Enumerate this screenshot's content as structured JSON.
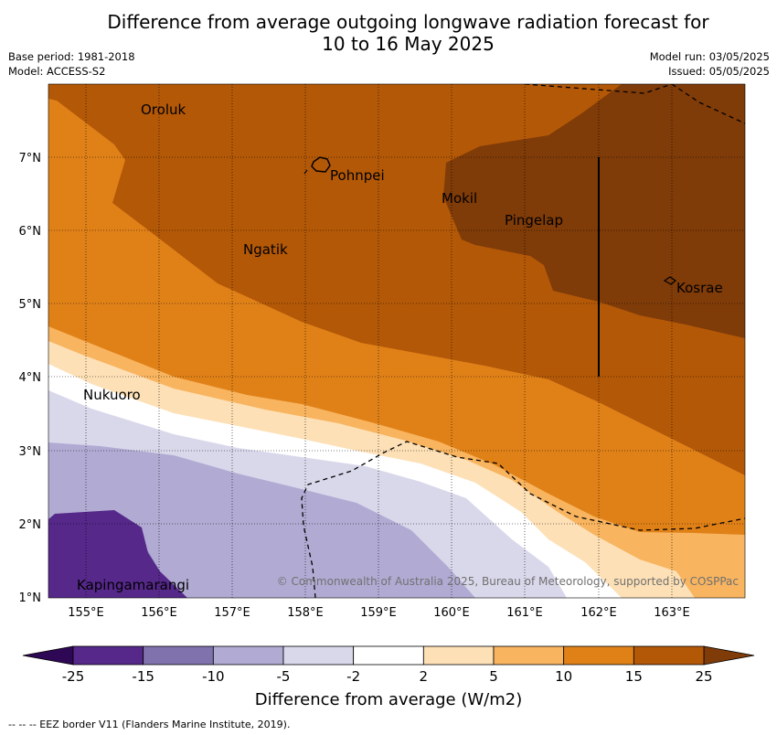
{
  "title_line1": "Difference from average outgoing longwave radiation forecast for",
  "title_line2": "10 to 16 May 2025",
  "base_period": "Base period: 1981-2018",
  "model": "Model: ACCESS-S2",
  "model_run": "Model run: 03/05/2025",
  "issued": "Issued: 05/05/2025",
  "lat_labels": [
    "7°N",
    "6°N",
    "5°N",
    "4°N",
    "3°N",
    "2°N",
    "1°N"
  ],
  "lon_labels": [
    "155°E",
    "156°E",
    "157°E",
    "158°E",
    "159°E",
    "160°E",
    "161°E",
    "162°E",
    "163°E"
  ],
  "places": {
    "oroluk": "Oroluk",
    "pohnpei": "Pohnpei",
    "mokil": "Mokil",
    "pingelap": "Pingelap",
    "ngatik": "Ngatik",
    "kosrae": "Kosrae",
    "nukuoro": "Nukuoro",
    "kapingamarangi": "Kapingamarangi"
  },
  "copyright": "© Commonwealth of Australia 2025, Bureau of Meteorology, supported by COSPPac",
  "colorbar": {
    "ticks": [
      "-25",
      "-15",
      "-10",
      "-5",
      "-2",
      "2",
      "5",
      "10",
      "15",
      "25"
    ],
    "colors": [
      "#55288a",
      "#7f72ad",
      "#b1abd3",
      "#d9d8eb",
      "#ffffff",
      "#fde0b6",
      "#f8b45f",
      "#e08118",
      "#b35807"
    ],
    "under_color": "#2e0854",
    "over_color": "#7f3b08",
    "label": "Difference from average (W/m2)"
  },
  "eez_note": "--  --  -- EEZ border V11 (Flanders Marine Institute, 2019)."
}
